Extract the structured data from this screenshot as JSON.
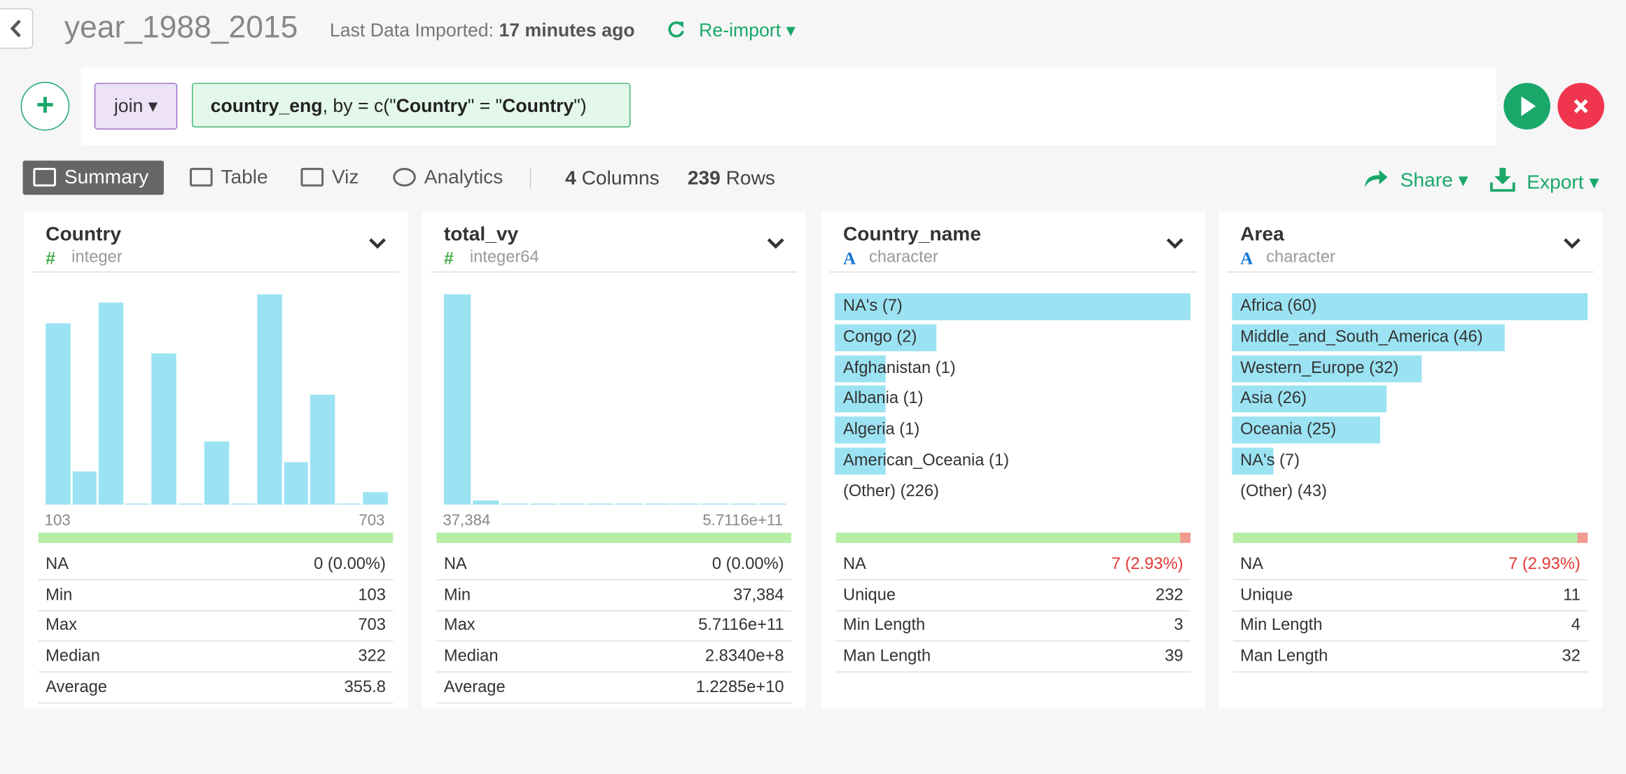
{
  "header": {
    "title": "year_1988_2015",
    "import_label": "Last Data Imported:",
    "import_time": "17 minutes ago",
    "reimport": "Re-import"
  },
  "command": {
    "verb": "join",
    "parts": [
      "country_eng",
      ", by = c(\"",
      "Country",
      "\" = \"",
      "Country",
      "\")"
    ]
  },
  "tabs": [
    "Summary",
    "Table",
    "Viz",
    "Analytics"
  ],
  "counts": {
    "columns": {
      "value": 4,
      "label": "Columns"
    },
    "rows": {
      "value": 239,
      "label": "Rows"
    }
  },
  "actions": [
    "Share",
    "Export"
  ],
  "columns": [
    {
      "name": "Country",
      "type_icon": "#",
      "type": "integer",
      "histogram": {
        "values": [
          43,
          8,
          48,
          0,
          36,
          0,
          15,
          0,
          50,
          10,
          26,
          0,
          3
        ],
        "ylim": [
          0,
          50
        ],
        "min_label": "103",
        "max_label": "703"
      },
      "na": {
        "name": "NA",
        "label": "0 (0.00%)",
        "value": 0
      },
      "stats": [
        [
          "Min",
          "103"
        ],
        [
          "Max",
          "703"
        ],
        [
          "Median",
          "322"
        ],
        [
          "Average",
          "355.8"
        ]
      ]
    },
    {
      "name": "total_vy",
      "type_icon": "#",
      "type": "integer64",
      "histogram": {
        "values": [
          230,
          5,
          1,
          1,
          0,
          0,
          0,
          1,
          0,
          0,
          0,
          1
        ],
        "ylim": [
          0,
          230
        ],
        "min_label": "37,384",
        "max_label": "5.7116e+11"
      },
      "na": {
        "name": "NA",
        "label": "0 (0.00%)",
        "value": 0
      },
      "stats": [
        [
          "Min",
          "37,384"
        ],
        [
          "Max",
          "5.7116e+11"
        ],
        [
          "Median",
          "2.8340e+8"
        ],
        [
          "Average",
          "1.2285e+10"
        ]
      ]
    },
    {
      "name": "Country_name",
      "type_icon": "A",
      "type": "character",
      "top_values": [
        {
          "label": "NA's (7)",
          "value": 7
        },
        {
          "label": "Congo (2)",
          "value": 2
        },
        {
          "label": "Afghanistan (1)",
          "value": 1
        },
        {
          "label": "Albania (1)",
          "value": 1
        },
        {
          "label": "Algeria (1)",
          "value": 1
        },
        {
          "label": "American_Oceania (1)",
          "value": 1
        }
      ],
      "other": "(Other) (226)",
      "na": {
        "name": "NA",
        "label": "7 (2.93%)",
        "value": 7
      },
      "stats": [
        [
          "Unique",
          "232"
        ],
        [
          "Min Length",
          "3"
        ],
        [
          "Man Length",
          "39"
        ]
      ]
    },
    {
      "name": "Area",
      "type_icon": "A",
      "type": "character",
      "top_values": [
        {
          "label": "Africa (60)",
          "value": 60
        },
        {
          "label": "Middle_and_South_America (46)",
          "value": 46
        },
        {
          "label": "Western_Europe (32)",
          "value": 32
        },
        {
          "label": "Asia (26)",
          "value": 26
        },
        {
          "label": "Oceania (25)",
          "value": 25
        },
        {
          "label": "NA's (7)",
          "value": 7
        }
      ],
      "other": "(Other) (43)",
      "na": {
        "name": "NA",
        "label": "7 (2.93%)",
        "value": 7
      },
      "stats": [
        [
          "Unique",
          "11"
        ],
        [
          "Min Length",
          "4"
        ],
        [
          "Man Length",
          "32"
        ]
      ]
    }
  ]
}
